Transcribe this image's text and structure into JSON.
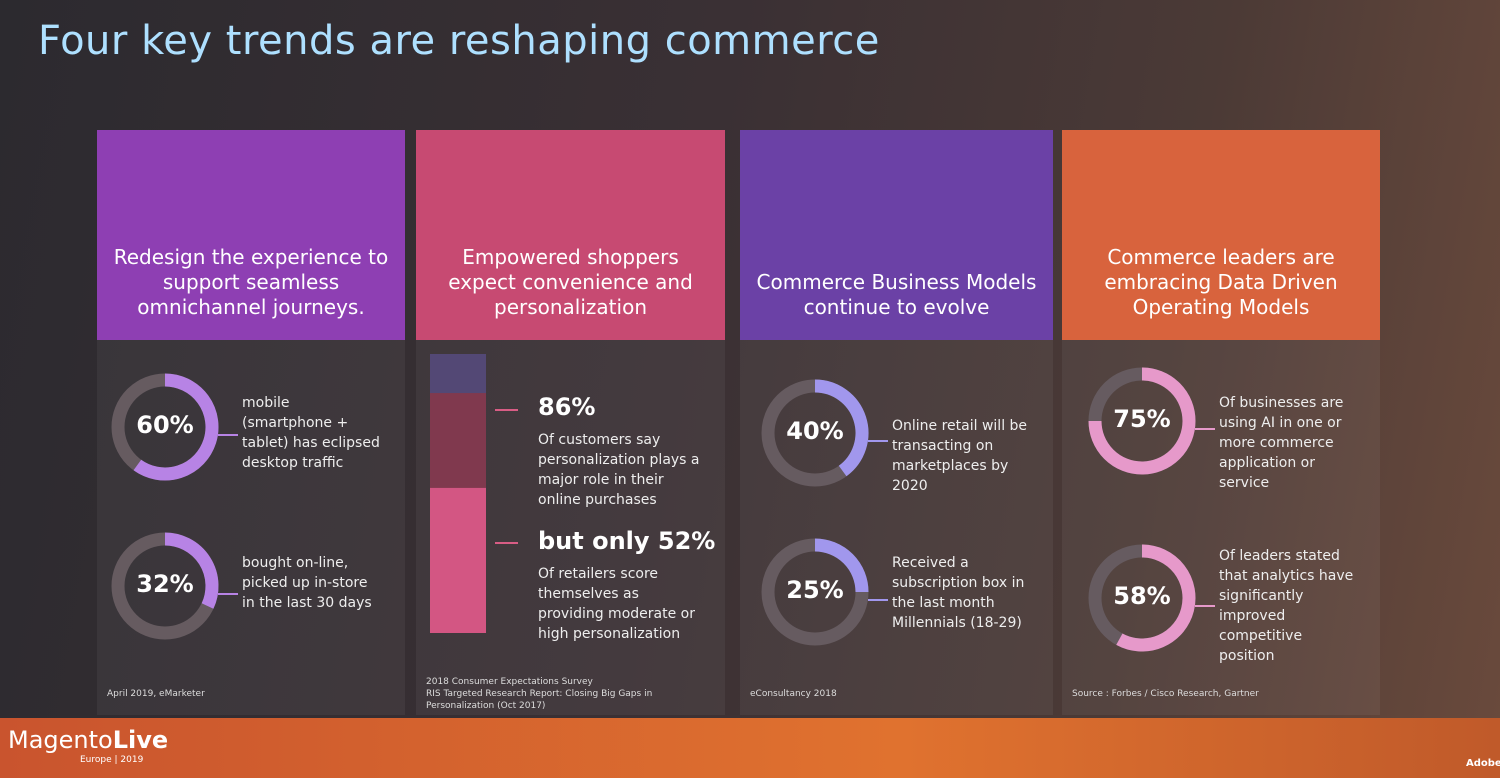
{
  "title": "Four key trends are reshaping commerce",
  "columns": [
    {
      "heading": "Redesign the experience to support seamless omnichannel journeys.",
      "stats": [
        {
          "value": 60,
          "label": "60%",
          "text": "mobile (smartphone + tablet) has eclipsed desktop traffic"
        },
        {
          "value": 32,
          "label": "32%",
          "text": "bought on-line, picked up in-store in the last 30 days"
        }
      ],
      "source": [
        "April 2019, eMarketer"
      ]
    },
    {
      "heading": "Empowered shoppers expect convenience and personalization",
      "stats": [
        {
          "value": 86,
          "label": "86%",
          "text": "Of customers say personalization plays a major role in their online purchases"
        },
        {
          "value": 52,
          "label": "but only 52%",
          "text": "Of retailers score themselves as providing moderate or high personalization"
        }
      ],
      "source": [
        "2018 Consumer Expectations Survey",
        "RIS Targeted Research Report: Closing Big Gaps in Personalization (Oct 2017)"
      ]
    },
    {
      "heading": "Commerce Business Models continue to evolve",
      "stats": [
        {
          "value": 40,
          "label": "40%",
          "text": "Online retail will be transacting on marketplaces by 2020"
        },
        {
          "value": 25,
          "label": "25%",
          "text": "Received a subscription box in the last month Millennials (18-29)"
        }
      ],
      "source": [
        "eConsultancy 2018"
      ]
    },
    {
      "heading": "Commerce leaders are embracing Data Driven Operating Models",
      "stats": [
        {
          "value": 75,
          "label": "75%",
          "text": "Of businesses are using AI in one or more commerce application or service"
        },
        {
          "value": 58,
          "label": "58%",
          "text": "Of leaders stated that analytics have significantly improved competitive position"
        }
      ],
      "source": [
        "Source : Forbes / Cisco Research, Gartner"
      ]
    }
  ],
  "footer": {
    "brand": "Magento",
    "brand_accent": "Live",
    "event": "Europe | 2019",
    "logo": "Adobe"
  }
}
